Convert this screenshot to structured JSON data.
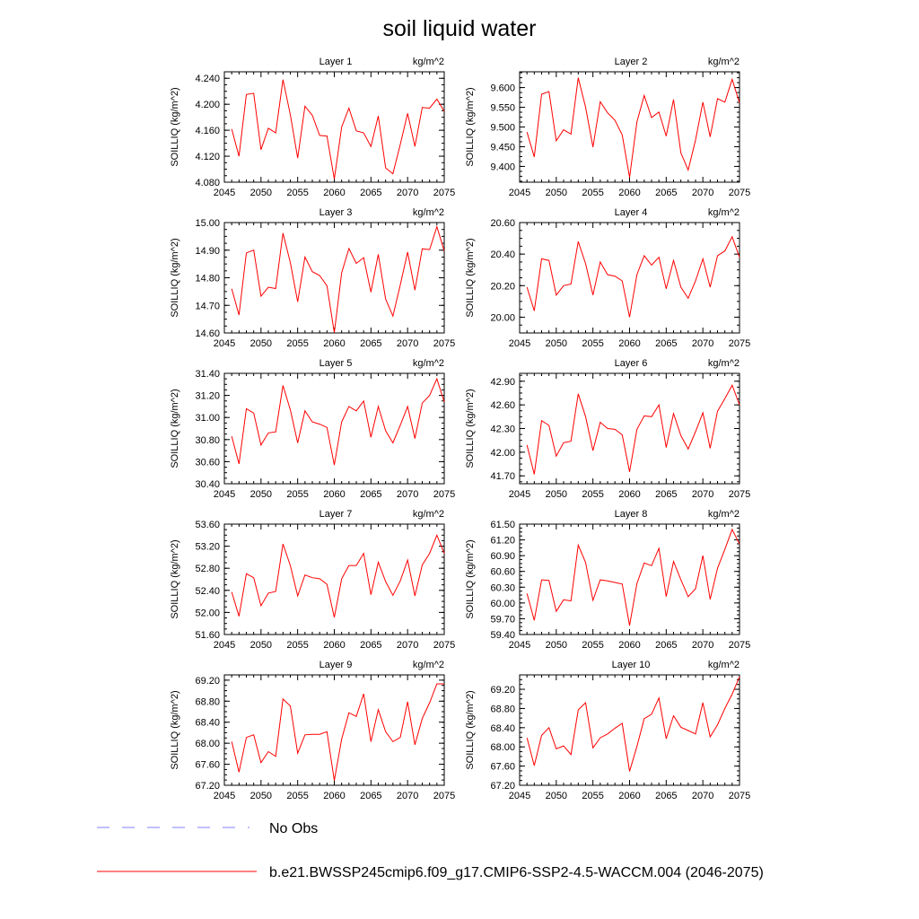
{
  "title": "soil liquid water",
  "colors": {
    "model": "#ff0000",
    "obs": "#8080ff",
    "axis": "#000000"
  },
  "legend": {
    "obs_label": "No Obs",
    "model_label": "b.e21.BWSSP245cmip6.f09_g17.CMIP6-SSP2-4.5-WACCM.004 (2046-2075)"
  },
  "chart_data": [
    {
      "type": "line",
      "title": "Layer 1",
      "units": "kg/m^2",
      "ylabel": "SOILLIQ  (kg/m^2)",
      "xlim": [
        2045,
        2075
      ],
      "xticks": [
        2045,
        2050,
        2055,
        2060,
        2065,
        2070,
        2075
      ],
      "ylim": [
        4.08,
        4.25
      ],
      "yticks": [
        "4.080",
        "4.120",
        "4.160",
        "4.200",
        "4.240"
      ],
      "x_start": 2046,
      "values": [
        4.162,
        4.12,
        4.215,
        4.217,
        4.13,
        4.163,
        4.156,
        4.238,
        4.184,
        4.117,
        4.197,
        4.183,
        4.152,
        4.151,
        4.085,
        4.165,
        4.194,
        4.159,
        4.156,
        4.135,
        4.182,
        4.102,
        4.093,
        4.138,
        4.186,
        4.135,
        4.195,
        4.194,
        4.208,
        4.189
      ]
    },
    {
      "type": "line",
      "title": "Layer 2",
      "units": "kg/m^2",
      "ylabel": "SOILLIQ  (kg/m^2)",
      "xlim": [
        2045,
        2075
      ],
      "xticks": [
        2045,
        2050,
        2055,
        2060,
        2065,
        2070,
        2075
      ],
      "ylim": [
        9.36,
        9.64
      ],
      "yticks": [
        "9.400",
        "9.450",
        "9.500",
        "9.550",
        "9.600"
      ],
      "x_start": 2046,
      "values": [
        9.487,
        9.424,
        9.583,
        9.59,
        9.465,
        9.493,
        9.482,
        9.625,
        9.55,
        9.449,
        9.564,
        9.536,
        9.517,
        9.48,
        9.372,
        9.513,
        9.58,
        9.524,
        9.538,
        9.477,
        9.57,
        9.434,
        9.391,
        9.467,
        9.563,
        9.475,
        9.572,
        9.563,
        9.621,
        9.561
      ]
    },
    {
      "type": "line",
      "title": "Layer 3",
      "units": "kg/m^2",
      "ylabel": "SOILLIQ  (kg/m^2)",
      "xlim": [
        2045,
        2075
      ],
      "xticks": [
        2045,
        2050,
        2055,
        2060,
        2065,
        2070,
        2075
      ],
      "ylim": [
        14.6,
        15.0
      ],
      "yticks": [
        "14.60",
        "14.70",
        "14.80",
        "14.90",
        "15.00"
      ],
      "x_start": 2046,
      "values": [
        14.76,
        14.665,
        14.89,
        14.9,
        14.733,
        14.766,
        14.761,
        14.962,
        14.855,
        14.713,
        14.875,
        14.822,
        14.808,
        14.771,
        14.601,
        14.818,
        14.906,
        14.852,
        14.873,
        14.748,
        14.885,
        14.723,
        14.661,
        14.774,
        14.893,
        14.755,
        14.905,
        14.902,
        14.985,
        14.897
      ]
    },
    {
      "type": "line",
      "title": "Layer 4",
      "units": "kg/m^2",
      "ylabel": "SOILLIQ  (kg/m^2)",
      "xlim": [
        2045,
        2075
      ],
      "xticks": [
        2045,
        2050,
        2055,
        2060,
        2065,
        2070,
        2075
      ],
      "ylim": [
        19.9,
        20.6
      ],
      "yticks": [
        "20.00",
        "20.20",
        "20.40",
        "20.60"
      ],
      "x_start": 2046,
      "values": [
        20.19,
        20.04,
        20.37,
        20.36,
        20.14,
        20.2,
        20.21,
        20.48,
        20.34,
        20.14,
        20.35,
        20.27,
        20.26,
        20.23,
        20.0,
        20.27,
        20.39,
        20.33,
        20.38,
        20.18,
        20.36,
        20.19,
        20.12,
        20.23,
        20.37,
        20.19,
        20.39,
        20.42,
        20.51,
        20.38
      ]
    },
    {
      "type": "line",
      "title": "Layer 5",
      "units": "kg/m^2",
      "ylabel": "SOILLIQ  (kg/m^2)",
      "xlim": [
        2045,
        2075
      ],
      "xticks": [
        2045,
        2050,
        2055,
        2060,
        2065,
        2070,
        2075
      ],
      "ylim": [
        30.4,
        31.4
      ],
      "yticks": [
        "30.40",
        "30.60",
        "30.80",
        "31.00",
        "31.20",
        "31.40"
      ],
      "x_start": 2046,
      "values": [
        30.83,
        30.58,
        31.08,
        31.04,
        30.75,
        30.86,
        30.87,
        31.29,
        31.07,
        30.77,
        31.06,
        30.96,
        30.94,
        30.91,
        30.57,
        30.96,
        31.1,
        31.06,
        31.15,
        30.82,
        31.1,
        30.88,
        30.77,
        30.93,
        31.1,
        30.81,
        31.13,
        31.2,
        31.35,
        31.14
      ]
    },
    {
      "type": "line",
      "title": "Layer 6",
      "units": "kg/m^2",
      "ylabel": "SOILLIQ  (kg/m^2)",
      "xlim": [
        2045,
        2075
      ],
      "xticks": [
        2045,
        2050,
        2055,
        2060,
        2065,
        2070,
        2075
      ],
      "ylim": [
        41.6,
        43.0
      ],
      "yticks": [
        "41.70",
        "42.00",
        "42.30",
        "42.60",
        "42.90"
      ],
      "x_start": 2046,
      "values": [
        42.09,
        41.72,
        42.4,
        42.34,
        41.95,
        42.12,
        42.14,
        42.74,
        42.45,
        42.02,
        42.38,
        42.3,
        42.29,
        42.22,
        41.75,
        42.29,
        42.46,
        42.45,
        42.6,
        42.06,
        42.49,
        42.21,
        42.04,
        42.26,
        42.5,
        42.05,
        42.52,
        42.68,
        42.85,
        42.6
      ]
    },
    {
      "type": "line",
      "title": "Layer 7",
      "units": "kg/m^2",
      "ylabel": "SOILLIQ  (kg/m^2)",
      "xlim": [
        2045,
        2075
      ],
      "xticks": [
        2045,
        2050,
        2055,
        2060,
        2065,
        2070,
        2075
      ],
      "ylim": [
        51.6,
        53.6
      ],
      "yticks": [
        "51.60",
        "52.00",
        "52.40",
        "52.80",
        "53.20",
        "53.60"
      ],
      "x_start": 2046,
      "values": [
        52.37,
        51.93,
        52.7,
        52.63,
        52.12,
        52.35,
        52.38,
        53.24,
        52.85,
        52.3,
        52.68,
        52.63,
        52.61,
        52.51,
        51.91,
        52.61,
        52.85,
        52.85,
        53.07,
        52.32,
        52.91,
        52.56,
        52.31,
        52.57,
        52.95,
        52.3,
        52.86,
        53.07,
        53.4,
        53.07
      ]
    },
    {
      "type": "line",
      "title": "Layer 8",
      "units": "kg/m^2",
      "ylabel": "SOILLIQ  (kg/m^2)",
      "xlim": [
        2045,
        2075
      ],
      "xticks": [
        2045,
        2050,
        2055,
        2060,
        2065,
        2070,
        2075
      ],
      "ylim": [
        59.4,
        61.5
      ],
      "yticks": [
        "59.40",
        "59.70",
        "60.00",
        "60.30",
        "60.60",
        "60.90",
        "61.20",
        "61.50"
      ],
      "x_start": 2046,
      "values": [
        60.18,
        59.67,
        60.44,
        60.43,
        59.84,
        60.06,
        60.04,
        61.1,
        60.77,
        60.05,
        60.44,
        60.42,
        60.39,
        60.36,
        59.57,
        60.37,
        60.76,
        60.71,
        61.04,
        60.12,
        60.79,
        60.44,
        60.12,
        60.27,
        60.9,
        60.07,
        60.66,
        61.02,
        61.4,
        61.12
      ]
    },
    {
      "type": "line",
      "title": "Layer 9",
      "units": "kg/m^2",
      "ylabel": "SOILLIQ  (kg/m^2)",
      "xlim": [
        2045,
        2075
      ],
      "xticks": [
        2045,
        2050,
        2055,
        2060,
        2065,
        2070,
        2075
      ],
      "ylim": [
        67.2,
        69.3
      ],
      "yticks": [
        "67.20",
        "67.60",
        "68.00",
        "68.40",
        "68.80",
        "69.20"
      ],
      "x_start": 2046,
      "values": [
        68.03,
        67.45,
        68.11,
        68.16,
        67.63,
        67.84,
        67.75,
        68.84,
        68.71,
        67.81,
        68.16,
        68.17,
        68.17,
        68.22,
        67.29,
        68.08,
        68.58,
        68.51,
        68.94,
        68.03,
        68.64,
        68.22,
        68.03,
        68.11,
        68.79,
        67.97,
        68.47,
        68.77,
        69.13,
        69.13
      ]
    },
    {
      "type": "line",
      "title": "Layer 10",
      "units": "kg/m^2",
      "ylabel": "SOILLIQ  (kg/m^2)",
      "xlim": [
        2045,
        2075
      ],
      "xticks": [
        2045,
        2050,
        2055,
        2060,
        2065,
        2070,
        2075
      ],
      "ylim": [
        67.2,
        69.5
      ],
      "yticks": [
        "67.20",
        "67.60",
        "68.00",
        "68.40",
        "68.80",
        "69.20"
      ],
      "x_start": 2046,
      "values": [
        68.19,
        67.61,
        68.24,
        68.4,
        67.96,
        68.02,
        67.84,
        68.77,
        68.92,
        67.98,
        68.19,
        68.27,
        68.39,
        68.49,
        67.49,
        68.01,
        68.59,
        68.68,
        69.02,
        68.17,
        68.65,
        68.41,
        68.34,
        68.27,
        68.92,
        68.21,
        68.46,
        68.8,
        69.1,
        69.46
      ]
    }
  ]
}
